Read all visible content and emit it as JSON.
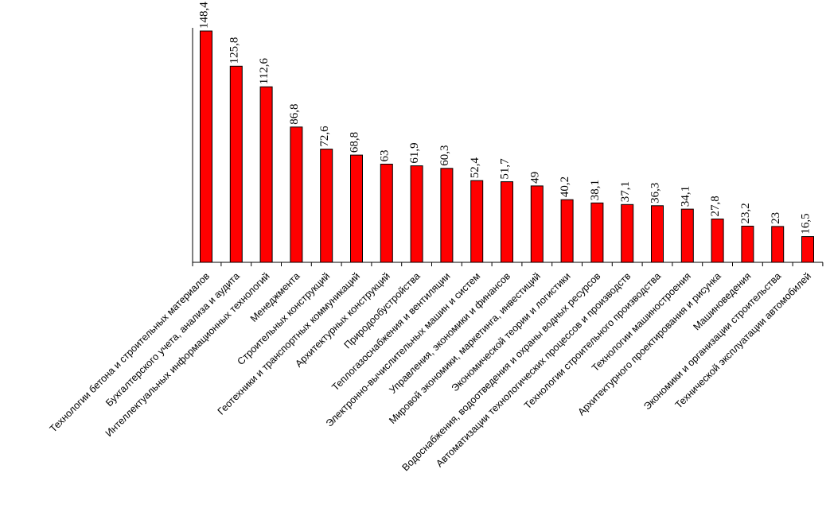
{
  "chart_data": {
    "type": "bar",
    "bar_color": "#ff0000",
    "ylim": [
      0,
      148.4
    ],
    "grid": false,
    "legend": "none",
    "categories": [
      "Технологии бетона и строительных  материалов",
      "Бухгалтерского учета, анализа и аудита",
      "Интеллектуальных  информационных  технологий",
      "Менеджмента",
      "Строительных  конструкций",
      "Геотехники и транспортных  коммуникаций",
      "Архитектурных  конструкций",
      "Природообустройства",
      "Теплогазоснабжения  и вентиляции",
      "Электронно-вычислительных  машин и систем",
      "Управления,  экономики и финансов",
      "Мировой экономики,  маркетинга,  инвестиций",
      "Экономической теории и логистики",
      "Водоснабжения, водоотведения и охраны водных ресурсов",
      "Автоматизации  технологических процессов и производств",
      "Технологии строительного  производства",
      "Технологии машиностроения",
      "Архитектурного  проектирования  и рисунка",
      "Машиноведения",
      "Экономики и организации  строительства",
      "Технической эксплуатации  автомобилей"
    ],
    "values": [
      148.4,
      125.8,
      112.6,
      86.8,
      72.6,
      68.8,
      63,
      61.9,
      60.3,
      52.4,
      51.7,
      49,
      40.2,
      38.1,
      37.1,
      36.3,
      34.1,
      27.8,
      23.2,
      23,
      16.5
    ],
    "value_labels": [
      "148,4",
      "125,8",
      "112,6",
      "86,8",
      "72,6",
      "68,8",
      "63",
      "61,9",
      "60,3",
      "52,4",
      "51,7",
      "49",
      "40,2",
      "38,1",
      "37,1",
      "36,3",
      "34,1",
      "27,8",
      "23,2",
      "23",
      "16,5"
    ]
  }
}
